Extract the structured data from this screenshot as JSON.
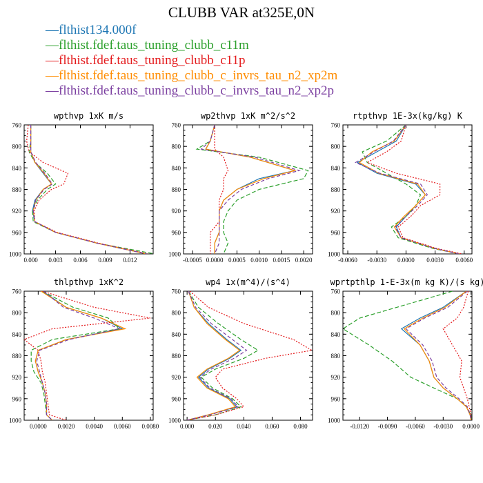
{
  "title": "CLUBB VAR at325E,0N",
  "legend": [
    {
      "name": "flthist134.000f",
      "color": "#1f77b4",
      "dash": "solid"
    },
    {
      "name": "flthist.fdef.taus_tuning_clubb_c11m",
      "color": "#2ca02c",
      "dash": "long"
    },
    {
      "name": "flthist.fdef.taus_tuning_clubb_c11p",
      "color": "#e41a1c",
      "dash": "dot"
    },
    {
      "name": "flthist.fdef.taus_tuning_clubb_c_invrs_tau_n2_xp2m",
      "color": "#ff8c00",
      "dash": "solid"
    },
    {
      "name": "flthist.fdef.taus_tuning_clubb_c_invrs_tau_n2_xp2p",
      "color": "#7b3fa0",
      "dash": "dash"
    }
  ],
  "chart_data": [
    {
      "type": "line",
      "title": "wpthvp   1xK m/s",
      "xlabel": "",
      "ylabel": "",
      "xlim": [
        -0.0008,
        0.0148
      ],
      "ylim": [
        760,
        1000
      ],
      "xticks": [
        "0.000",
        "0.003",
        "0.006",
        "0.009",
        "0.012"
      ],
      "xtick_values": [
        0,
        0.003,
        0.006,
        0.009,
        0.012
      ],
      "yticks": [
        760,
        800,
        840,
        880,
        920,
        960,
        1000
      ],
      "y": [
        760,
        790,
        810,
        830,
        850,
        870,
        880,
        900,
        920,
        940,
        960,
        980,
        1000
      ],
      "series": [
        {
          "name": "flthist134.000f",
          "values": [
            0,
            0,
            0,
            0.0005,
            0.0015,
            0.0025,
            0.0015,
            0.0005,
            0.0002,
            0.0005,
            0.003,
            0.008,
            0.014
          ]
        },
        {
          "name": "flthist.fdef.taus_tuning_clubb_c11m",
          "values": [
            0,
            0,
            -0.0002,
            0.0005,
            0.002,
            0.003,
            0.002,
            0.0008,
            0.0002,
            0.0003,
            0.003,
            0.008,
            0.015
          ]
        },
        {
          "name": "flthist.fdef.taus_tuning_clubb_c11p",
          "values": [
            -0.0003,
            -0.0005,
            -0.0002,
            0.0015,
            0.0045,
            0.004,
            0.0025,
            0.001,
            0.0004,
            0.0005,
            0.0032,
            0.0082,
            0.0142
          ]
        },
        {
          "name": "flthist.fdef.taus_tuning_clubb_c_invrs_tau_n2_xp2m",
          "values": [
            0,
            0,
            0,
            0.0005,
            0.0016,
            0.0025,
            0.0015,
            0.0006,
            0.0003,
            0.0005,
            0.003,
            0.008,
            0.014
          ]
        },
        {
          "name": "flthist.fdef.taus_tuning_clubb_c_invrs_tau_n2_xp2p",
          "values": [
            0,
            0,
            0,
            0.0006,
            0.0017,
            0.0026,
            0.0016,
            0.0006,
            0.0003,
            0.0005,
            0.003,
            0.008,
            0.014
          ]
        }
      ]
    },
    {
      "type": "line",
      "title": "wp2thvp   1xK m^2/s^2",
      "xlabel": "",
      "ylabel": "",
      "xlim": [
        -0.0007,
        0.0022
      ],
      "ylim": [
        760,
        1000
      ],
      "xticks": [
        "-0.0005",
        "0.0000",
        "0.0005",
        "0.0010",
        "0.0015",
        "0.0020"
      ],
      "xtick_values": [
        -0.0005,
        0,
        0.0005,
        0.001,
        0.0015,
        0.002
      ],
      "yticks": [
        760,
        800,
        840,
        880,
        920,
        960,
        1000
      ],
      "y": [
        760,
        790,
        805,
        820,
        845,
        860,
        880,
        900,
        920,
        940,
        960,
        980,
        1000
      ],
      "series": [
        {
          "name": "flthist134.000f",
          "values": [
            0,
            -0.0001,
            -0.0002,
            0.0008,
            0.0018,
            0.001,
            0.0005,
            0.0002,
            0.0001,
            0.0001,
            0.0001,
            0.0,
            0.0
          ]
        },
        {
          "name": "flthist.fdef.taus_tuning_clubb_c11m",
          "values": [
            0,
            -0.0001,
            -0.0004,
            0.001,
            0.0021,
            0.002,
            0.001,
            0.0005,
            0.0003,
            0.0002,
            0.0002,
            0.0003,
            0.0002
          ]
        },
        {
          "name": "flthist.fdef.taus_tuning_clubb_c11p",
          "values": [
            0,
            0.0,
            0.0,
            0.0002,
            0.0003,
            0.0002,
            0.0002,
            0.0001,
            0.0001,
            0.0001,
            -0.0001,
            -0.0001,
            -0.0001
          ]
        },
        {
          "name": "flthist.fdef.taus_tuning_clubb_c_invrs_tau_n2_xp2m",
          "values": [
            0,
            -0.0001,
            -0.0002,
            0.0008,
            0.0018,
            0.0011,
            0.0005,
            0.0002,
            0.0001,
            0.0001,
            0.0001,
            0.0,
            0.0
          ]
        },
        {
          "name": "flthist.fdef.taus_tuning_clubb_c_invrs_tau_n2_xp2p",
          "values": [
            0,
            -0.0001,
            -0.0003,
            0.0009,
            0.0019,
            0.0012,
            0.0006,
            0.0003,
            0.0001,
            0.0001,
            0.0001,
            0.0001,
            0.0
          ]
        }
      ]
    },
    {
      "type": "line",
      "title": "rtpthvp   1E-3x(kg/kg) K",
      "xlabel": "",
      "ylabel": "",
      "xlim": [
        -0.0065,
        0.0068
      ],
      "ylim": [
        760,
        1000
      ],
      "xticks": [
        "-0.0060",
        "-0.0030",
        "0.0000",
        "0.0030",
        "0.0060"
      ],
      "xtick_values": [
        -0.006,
        -0.003,
        0,
        0.003,
        0.006
      ],
      "yticks": [
        760,
        800,
        840,
        880,
        920,
        960,
        1000
      ],
      "y": [
        760,
        790,
        810,
        830,
        850,
        870,
        890,
        910,
        930,
        950,
        970,
        990,
        1000
      ],
      "series": [
        {
          "name": "flthist134.000f",
          "values": [
            0.0,
            -0.001,
            -0.003,
            -0.005,
            -0.003,
            0.001,
            0.002,
            0.001,
            0.0,
            -0.001,
            -0.0005,
            0.003,
            0.0055
          ]
        },
        {
          "name": "flthist.fdef.taus_tuning_clubb_c11m",
          "values": [
            0.0,
            -0.002,
            -0.0045,
            -0.004,
            -0.002,
            0.0,
            0.0015,
            0.001,
            0.0,
            -0.0015,
            -0.0008,
            0.0028,
            0.0055
          ]
        },
        {
          "name": "flthist.fdef.taus_tuning_clubb_c11p",
          "values": [
            0.0,
            -0.0005,
            -0.002,
            -0.004,
            -0.001,
            0.0035,
            0.0035,
            0.0015,
            0.0005,
            -0.0008,
            -0.0003,
            0.0032,
            0.0058
          ]
        },
        {
          "name": "flthist.fdef.taus_tuning_clubb_c_invrs_tau_n2_xp2m",
          "values": [
            0.0,
            -0.0012,
            -0.0035,
            -0.0048,
            -0.0028,
            0.0012,
            0.002,
            0.001,
            -0.0002,
            -0.0012,
            -0.0005,
            0.003,
            0.0055
          ]
        },
        {
          "name": "flthist.fdef.taus_tuning_clubb_c_invrs_tau_n2_xp2p",
          "values": [
            0.0,
            -0.0013,
            -0.0033,
            -0.0052,
            -0.0027,
            0.0015,
            0.0022,
            0.0012,
            0.0,
            -0.0011,
            -0.0005,
            0.003,
            0.0055
          ]
        }
      ]
    },
    {
      "type": "line",
      "title": "thlpthvp   1xK^2",
      "xlabel": "",
      "ylabel": "",
      "xlim": [
        -0.001,
        0.0082
      ],
      "ylim": [
        760,
        1000
      ],
      "xticks": [
        "0.0000",
        "0.0020",
        "0.0040",
        "0.0060",
        "0.0080"
      ],
      "xtick_values": [
        0,
        0.002,
        0.004,
        0.006,
        0.008
      ],
      "yticks": [
        760,
        800,
        840,
        880,
        920,
        960,
        1000
      ],
      "y": [
        760,
        790,
        810,
        830,
        850,
        870,
        890,
        910,
        930,
        950,
        970,
        990,
        1000
      ],
      "series": [
        {
          "name": "flthist134.000f",
          "values": [
            0.0003,
            0.002,
            0.0045,
            0.006,
            0.002,
            0.0,
            -0.0002,
            0.0,
            0.0003,
            0.0005,
            0.0006,
            0.0006,
            0.001
          ]
        },
        {
          "name": "flthist.fdef.taus_tuning_clubb_c11m",
          "values": [
            0.0003,
            0.0025,
            0.005,
            0.0058,
            0.001,
            -0.0005,
            -0.0005,
            -0.0003,
            0.0002,
            0.0004,
            0.0005,
            0.0006,
            0.001
          ]
        },
        {
          "name": "flthist.fdef.taus_tuning_clubb_c11p",
          "values": [
            0.0003,
            0.004,
            0.008,
            0.001,
            -0.001,
            0.0,
            0.0002,
            0.0003,
            0.0005,
            0.0006,
            0.0007,
            0.0008,
            0.002
          ]
        },
        {
          "name": "flthist.fdef.taus_tuning_clubb_c_invrs_tau_n2_xp2m",
          "values": [
            0.0002,
            0.002,
            0.0045,
            0.0062,
            0.002,
            0.0,
            -0.0002,
            0.0,
            0.0003,
            0.0005,
            0.0006,
            0.0006,
            0.001
          ]
        },
        {
          "name": "flthist.fdef.taus_tuning_clubb_c_invrs_tau_n2_xp2p",
          "values": [
            0.0004,
            0.0018,
            0.004,
            0.0058,
            0.0022,
            0.0001,
            -0.0001,
            0.0001,
            0.0003,
            0.0005,
            0.0006,
            0.0006,
            0.001
          ]
        }
      ]
    },
    {
      "type": "line",
      "title": "wp4   1x(m^4)/(s^4)",
      "xlabel": "",
      "ylabel": "",
      "xlim": [
        -0.0025,
        0.0885
      ],
      "ylim": [
        760,
        1000
      ],
      "xticks": [
        "0.000",
        "0.020",
        "0.040",
        "0.060",
        "0.080"
      ],
      "xtick_values": [
        0,
        0.02,
        0.04,
        0.06,
        0.08
      ],
      "yticks": [
        760,
        800,
        840,
        880,
        920,
        960,
        1000
      ],
      "y": [
        760,
        790,
        820,
        850,
        870,
        885,
        905,
        920,
        940,
        960,
        975,
        990,
        1000
      ],
      "series": [
        {
          "name": "flthist134.000f",
          "values": [
            0.001,
            0.005,
            0.015,
            0.028,
            0.038,
            0.03,
            0.015,
            0.008,
            0.015,
            0.03,
            0.035,
            0.015,
            0.0
          ]
        },
        {
          "name": "flthist.fdef.taus_tuning_clubb_c11m",
          "values": [
            0.001,
            0.008,
            0.022,
            0.038,
            0.05,
            0.04,
            0.02,
            0.01,
            0.018,
            0.032,
            0.038,
            0.02,
            0.0
          ]
        },
        {
          "name": "flthist.fdef.taus_tuning_clubb_c11p",
          "values": [
            0.002,
            0.015,
            0.04,
            0.075,
            0.088,
            0.055,
            0.025,
            0.02,
            0.025,
            0.035,
            0.04,
            0.02,
            0.0
          ]
        },
        {
          "name": "flthist.fdef.taus_tuning_clubb_c_invrs_tau_n2_xp2m",
          "values": [
            0.001,
            0.005,
            0.014,
            0.027,
            0.037,
            0.029,
            0.014,
            0.007,
            0.014,
            0.029,
            0.034,
            0.015,
            0.0
          ]
        },
        {
          "name": "flthist.fdef.taus_tuning_clubb_c_invrs_tau_n2_xp2p",
          "values": [
            0.001,
            0.006,
            0.017,
            0.032,
            0.042,
            0.033,
            0.017,
            0.009,
            0.016,
            0.031,
            0.036,
            0.016,
            0.0
          ]
        }
      ]
    },
    {
      "type": "line",
      "title": "wprtpthlp   1-E-3x(m kg K)/(s kg)",
      "xlabel": "",
      "ylabel": "",
      "xlim": [
        -0.0138,
        0.0001
      ],
      "ylim": [
        760,
        1000
      ],
      "xticks": [
        "-0.0120",
        "-0.0090",
        "-0.0060",
        "-0.0030",
        "0.0000"
      ],
      "xtick_values": [
        -0.012,
        -0.009,
        -0.006,
        -0.003,
        0
      ],
      "yticks": [
        760,
        800,
        840,
        880,
        920,
        960,
        1000
      ],
      "y": [
        760,
        790,
        810,
        830,
        860,
        890,
        920,
        940,
        960,
        975,
        990,
        1000
      ],
      "series": [
        {
          "name": "flthist134.000f",
          "values": [
            -0.0005,
            -0.003,
            -0.0055,
            -0.0075,
            -0.0055,
            -0.0045,
            -0.004,
            -0.003,
            -0.0015,
            -0.0005,
            -0.0001,
            0.0
          ]
        },
        {
          "name": "flthist.fdef.taus_tuning_clubb_c11m",
          "values": [
            -0.002,
            -0.008,
            -0.012,
            -0.0138,
            -0.011,
            -0.0085,
            -0.0065,
            -0.004,
            -0.0015,
            -0.0005,
            0.0,
            0.0
          ]
        },
        {
          "name": "flthist.fdef.taus_tuning_clubb_c11p",
          "values": [
            -0.0003,
            -0.0008,
            -0.0015,
            -0.003,
            -0.002,
            -0.001,
            -0.0012,
            -0.0008,
            -0.0004,
            -0.0002,
            0.0,
            0.0
          ]
        },
        {
          "name": "flthist.fdef.taus_tuning_clubb_c_invrs_tau_n2_xp2m",
          "values": [
            -0.0005,
            -0.0028,
            -0.0052,
            -0.0072,
            -0.0055,
            -0.0045,
            -0.004,
            -0.003,
            -0.0015,
            -0.0005,
            -0.0001,
            0.0
          ]
        },
        {
          "name": "flthist.fdef.taus_tuning_clubb_c_invrs_tau_n2_xp2p",
          "values": [
            -0.0004,
            -0.0025,
            -0.005,
            -0.007,
            -0.0052,
            -0.0042,
            -0.0037,
            -0.0027,
            -0.0013,
            -0.0004,
            -0.0001,
            0.0
          ]
        }
      ]
    }
  ]
}
